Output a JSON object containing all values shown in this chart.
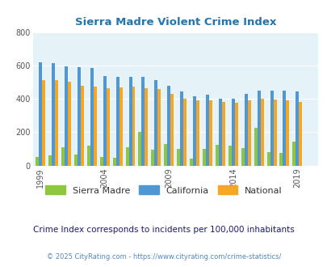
{
  "title": "Sierra Madre Violent Crime Index",
  "years": [
    1999,
    2000,
    2001,
    2002,
    2003,
    2004,
    2005,
    2006,
    2007,
    2008,
    2009,
    2010,
    2011,
    2012,
    2013,
    2014,
    2015,
    2016,
    2017,
    2018,
    2019
  ],
  "sierra_madre": [
    50,
    60,
    110,
    65,
    120,
    50,
    45,
    110,
    200,
    95,
    130,
    100,
    40,
    100,
    125,
    120,
    105,
    225,
    80,
    75,
    145
  ],
  "california": [
    620,
    615,
    595,
    590,
    585,
    535,
    530,
    530,
    530,
    510,
    480,
    445,
    415,
    425,
    400,
    400,
    430,
    450,
    450,
    450,
    445
  ],
  "national": [
    510,
    510,
    500,
    480,
    475,
    465,
    470,
    475,
    465,
    460,
    430,
    400,
    390,
    390,
    380,
    375,
    390,
    400,
    395,
    390,
    380
  ],
  "colors": {
    "sierra_madre": "#8DC63F",
    "california": "#4F97D3",
    "national": "#F5A623"
  },
  "ylim": [
    0,
    800
  ],
  "yticks": [
    0,
    200,
    400,
    600,
    800
  ],
  "xticks": [
    1999,
    2004,
    2009,
    2014,
    2019
  ],
  "plot_bg": "#E5F2F7",
  "fig_bg": "#FFFFFF",
  "title_color": "#2176AE",
  "subtitle": "Crime Index corresponds to incidents per 100,000 inhabitants",
  "footer": "© 2025 CityRating.com - https://www.cityrating.com/crime-statistics/",
  "legend_labels": [
    "Sierra Madre",
    "California",
    "National"
  ],
  "bar_width": 0.25,
  "subtitle_color": "#1a1a6e",
  "footer_color": "#5588BB"
}
